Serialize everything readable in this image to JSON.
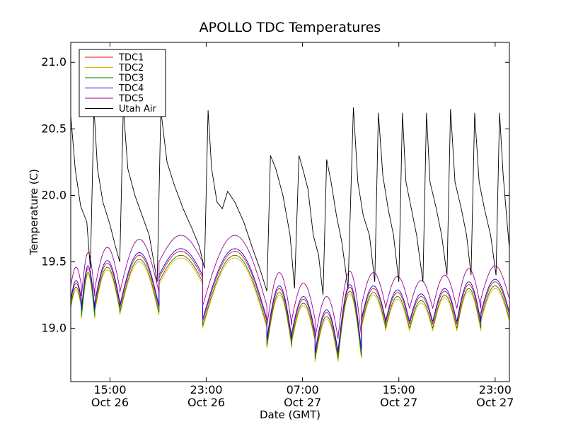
{
  "chart_data": {
    "type": "line",
    "title": "APOLLO TDC Temperatures",
    "xlabel": "Date (GMT)",
    "ylabel": "Temperature (C)",
    "xlim_hours": [
      11.8,
      36.4
    ],
    "ylim": [
      18.6,
      21.15
    ],
    "y_ticks": [
      {
        "value": 19.0,
        "label": "19.0"
      },
      {
        "value": 19.5,
        "label": "19.5"
      },
      {
        "value": 20.0,
        "label": "20.0"
      },
      {
        "value": 20.5,
        "label": "20.5"
      },
      {
        "value": 21.0,
        "label": "21.0"
      }
    ],
    "x_ticks": [
      {
        "hour": 14,
        "time": "15:00",
        "date": "Oct 26"
      },
      {
        "hour": 19.4,
        "time": "23:00",
        "date": "Oct 26"
      },
      {
        "hour": 24.8,
        "time": "07:00",
        "date": "Oct 27"
      },
      {
        "hour": 30.2,
        "time": "15:00",
        "date": "Oct 27"
      },
      {
        "hour": 35.6,
        "time": "23:00",
        "date": "Oct 27"
      }
    ],
    "legend_position": "upper-left",
    "series": [
      {
        "name": "TDC1",
        "color": "#ff0000",
        "offset": 0.0
      },
      {
        "name": "TDC2",
        "color": "#e6b800",
        "offset": -0.05
      },
      {
        "name": "TDC3",
        "color": "#008000",
        "offset": -0.03
      },
      {
        "name": "TDC4",
        "color": "#0000ff",
        "offset": 0.02
      },
      {
        "name": "TDC5",
        "color": "#990099",
        "offset": 0.12
      },
      {
        "name": "Utah Air",
        "color": "#000000",
        "offset": 0.0
      }
    ],
    "tdc_cycles": [
      {
        "start": 11.8,
        "end": 12.4,
        "base": 19.2,
        "peak": 19.34
      },
      {
        "start": 12.4,
        "end": 13.15,
        "base": 19.12,
        "peak": 19.45
      },
      {
        "start": 13.15,
        "end": 14.55,
        "base": 19.18,
        "peak": 19.49
      },
      {
        "start": 14.55,
        "end": 16.75,
        "base": 19.15,
        "peak": 19.55
      },
      {
        "start": 16.75,
        "end": 19.2,
        "base": 19.38,
        "peak": 19.58
      },
      {
        "start": 19.2,
        "end": 22.8,
        "base": 19.05,
        "peak": 19.58
      },
      {
        "start": 22.8,
        "end": 24.2,
        "base": 18.9,
        "peak": 19.3
      },
      {
        "start": 24.2,
        "end": 25.5,
        "base": 18.95,
        "peak": 19.22
      },
      {
        "start": 25.5,
        "end": 26.8,
        "base": 18.8,
        "peak": 19.12
      },
      {
        "start": 26.8,
        "end": 28.1,
        "base": 18.82,
        "peak": 19.31
      },
      {
        "start": 28.1,
        "end": 29.45,
        "base": 19.05,
        "peak": 19.3
      },
      {
        "start": 29.45,
        "end": 30.8,
        "base": 19.03,
        "peak": 19.27
      },
      {
        "start": 30.8,
        "end": 32.1,
        "base": 19.03,
        "peak": 19.24
      },
      {
        "start": 32.1,
        "end": 33.45,
        "base": 19.03,
        "peak": 19.28
      },
      {
        "start": 33.45,
        "end": 34.8,
        "base": 19.03,
        "peak": 19.33
      },
      {
        "start": 34.8,
        "end": 36.4,
        "base": 19.1,
        "peak": 19.35
      }
    ],
    "utah_air_points": [
      [
        11.8,
        20.6
      ],
      [
        12.05,
        20.2
      ],
      [
        12.35,
        19.92
      ],
      [
        12.7,
        19.8
      ],
      [
        12.9,
        19.45
      ],
      [
        13.1,
        20.66
      ],
      [
        13.3,
        20.2
      ],
      [
        13.6,
        19.95
      ],
      [
        14.0,
        19.78
      ],
      [
        14.3,
        19.62
      ],
      [
        14.55,
        19.5
      ],
      [
        14.75,
        20.66
      ],
      [
        15.0,
        20.2
      ],
      [
        15.4,
        20.0
      ],
      [
        15.8,
        19.85
      ],
      [
        16.2,
        19.7
      ],
      [
        16.65,
        19.35
      ],
      [
        16.85,
        20.64
      ],
      [
        17.2,
        20.25
      ],
      [
        17.6,
        20.08
      ],
      [
        18.1,
        19.9
      ],
      [
        18.6,
        19.75
      ],
      [
        19.0,
        19.62
      ],
      [
        19.3,
        19.45
      ],
      [
        19.5,
        20.64
      ],
      [
        19.7,
        20.2
      ],
      [
        20.0,
        19.95
      ],
      [
        20.3,
        19.9
      ],
      [
        20.6,
        20.03
      ],
      [
        21.0,
        19.95
      ],
      [
        21.5,
        19.8
      ],
      [
        22.0,
        19.6
      ],
      [
        22.4,
        19.45
      ],
      [
        22.8,
        19.28
      ],
      [
        23.0,
        20.3
      ],
      [
        23.3,
        20.2
      ],
      [
        23.7,
        20.0
      ],
      [
        24.1,
        19.7
      ],
      [
        24.35,
        19.3
      ],
      [
        24.6,
        20.3
      ],
      [
        24.85,
        20.18
      ],
      [
        25.1,
        20.05
      ],
      [
        25.4,
        19.7
      ],
      [
        25.7,
        19.55
      ],
      [
        25.95,
        19.25
      ],
      [
        26.15,
        20.27
      ],
      [
        26.4,
        20.1
      ],
      [
        26.7,
        19.85
      ],
      [
        27.0,
        19.65
      ],
      [
        27.35,
        19.3
      ],
      [
        27.65,
        20.66
      ],
      [
        27.9,
        20.1
      ],
      [
        28.2,
        19.85
      ],
      [
        28.55,
        19.7
      ],
      [
        28.85,
        19.35
      ],
      [
        29.05,
        20.62
      ],
      [
        29.3,
        20.15
      ],
      [
        29.6,
        19.9
      ],
      [
        29.9,
        19.7
      ],
      [
        30.2,
        19.35
      ],
      [
        30.4,
        20.62
      ],
      [
        30.6,
        20.1
      ],
      [
        30.9,
        19.9
      ],
      [
        31.2,
        19.7
      ],
      [
        31.55,
        19.35
      ],
      [
        31.75,
        20.62
      ],
      [
        31.95,
        20.1
      ],
      [
        32.3,
        19.9
      ],
      [
        32.6,
        19.7
      ],
      [
        32.9,
        19.4
      ],
      [
        33.1,
        20.65
      ],
      [
        33.35,
        20.1
      ],
      [
        33.7,
        19.9
      ],
      [
        34.0,
        19.7
      ],
      [
        34.25,
        19.4
      ],
      [
        34.45,
        20.62
      ],
      [
        34.7,
        20.1
      ],
      [
        35.0,
        19.9
      ],
      [
        35.35,
        19.7
      ],
      [
        35.65,
        19.4
      ],
      [
        35.85,
        20.62
      ],
      [
        36.05,
        20.15
      ],
      [
        36.3,
        19.75
      ],
      [
        36.4,
        19.6
      ]
    ]
  }
}
